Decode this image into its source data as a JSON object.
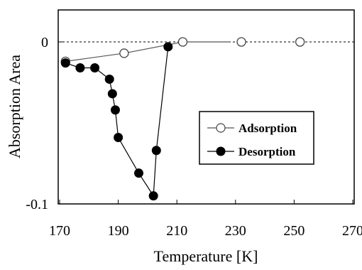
{
  "chart_data": {
    "type": "line",
    "xlabel": "Temperature [K]",
    "ylabel": "Absorption Area",
    "xlim": [
      170,
      270
    ],
    "ylim": [
      -0.1,
      0.01
    ],
    "x_ticks": [
      170,
      190,
      210,
      230,
      250,
      270
    ],
    "y_ticks": [
      0,
      -0.1
    ],
    "x_tick_labels": [
      "170",
      "190",
      "210",
      "230",
      "250",
      "270"
    ],
    "y_tick_labels": [
      "0",
      "-0.1"
    ],
    "zero_line": "dashed",
    "grid": false,
    "legend_position": "right",
    "series": [
      {
        "name": "Adsorption",
        "marker": "open-circle",
        "x": [
          172,
          192,
          212,
          232,
          252
        ],
        "y": [
          -0.012,
          -0.007,
          0.0,
          0.0,
          0.0
        ],
        "line_x": [
          172,
          192,
          212,
          228
        ],
        "line_y": [
          -0.012,
          -0.007,
          0.0,
          0.0
        ]
      },
      {
        "name": "Desorption",
        "marker": "filled-circle",
        "x": [
          172,
          177,
          182,
          187,
          188,
          189,
          190,
          197,
          202,
          203,
          207
        ],
        "y": [
          -0.013,
          -0.016,
          -0.016,
          -0.023,
          -0.032,
          -0.042,
          -0.059,
          -0.081,
          -0.095,
          -0.067,
          -0.003
        ]
      }
    ]
  }
}
